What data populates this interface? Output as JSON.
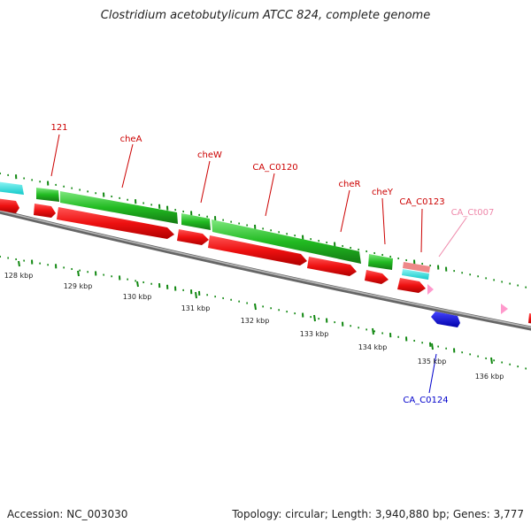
{
  "title": "Clostridium acetobutylicum ATCC 824, complete genome",
  "footer": {
    "accession_label": "Accession:",
    "accession_value": "NC_003030",
    "topology_label": "Topology:",
    "topology_value": "circular",
    "length_label": "Length:",
    "length_value": "3,940,880 bp",
    "genes_label": "Genes:",
    "genes_value": "3,777"
  },
  "scale": {
    "labels": [
      "128 kbp",
      "129 kbp",
      "130 kbp",
      "131 kbp",
      "132 kbp",
      "133 kbp",
      "134 kbp",
      "135 kbp",
      "136 kbp"
    ]
  },
  "gene_labels": [
    {
      "name": "121",
      "color": "#cc0000"
    },
    {
      "name": "cheA",
      "color": "#cc0000"
    },
    {
      "name": "cheW",
      "color": "#cc0000"
    },
    {
      "name": "CA_C0120",
      "color": "#cc0000"
    },
    {
      "name": "cheR",
      "color": "#cc0000"
    },
    {
      "name": "cheY",
      "color": "#cc0000"
    },
    {
      "name": "CA_C0123",
      "color": "#cc0000"
    },
    {
      "name": "CA_Ct007",
      "color": "#ee88aa"
    },
    {
      "name": "CA_C0124",
      "color": "#0000cc"
    }
  ],
  "colors": {
    "cds": "#ee1111",
    "cog_chemotaxis": "#22bb22",
    "cog_other": "#22dddd",
    "trna": "#ff99cc",
    "reverse_strand_gene": "#0000dd",
    "backbone": "#888888",
    "gc_ticks": "#118811"
  }
}
